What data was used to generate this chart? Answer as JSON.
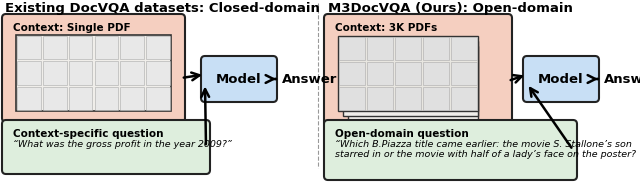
{
  "title_left": "Existing DocVQA datasets: Closed-domain",
  "title_right": "M3DocVQA (Ours): Open-domain",
  "left_context_label": "Context: Single PDF",
  "right_context_label": "Context: 3K PDFs",
  "left_question_title": "Context-specific question",
  "left_question_text": "“What was the gross profit in the year 2009?”",
  "right_question_title": "Open-domain question",
  "right_question_text": "“Which B.Piazza title came earlier: the movie S. Stallone’s son\nstarred in or the movie with half of a lady’s face on the poster?",
  "model_label": "Model",
  "answer_label": "Answer",
  "bg_color": "#ffffff",
  "salmon_box_color": "#f5cfc0",
  "salmon_edge_color": "#222222",
  "green_box_color": "#deeedd",
  "green_edge_color": "#222222",
  "blue_box_color": "#c8dff5",
  "blue_edge_color": "#222222",
  "divider_color": "#999999",
  "title_fontsize": 9.5,
  "body_fontsize": 6.8,
  "bold_fontsize": 7.5,
  "model_fontsize": 9.5
}
